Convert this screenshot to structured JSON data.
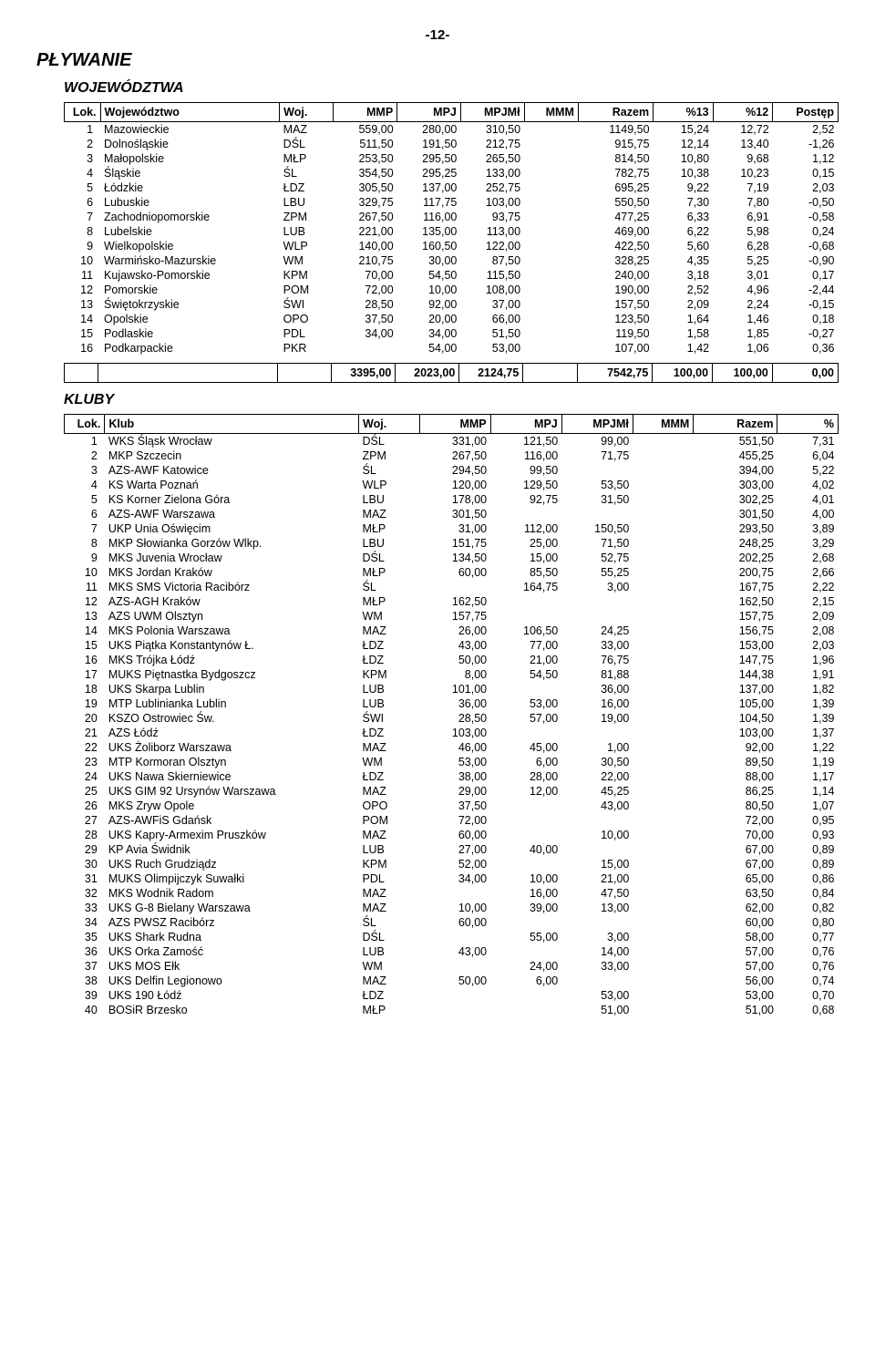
{
  "pageNumber": "-12-",
  "title": "PŁYWANIE",
  "wojTitle": "WOJEWÓDZTWA",
  "klubTitle": "KLUBY",
  "wojHeaders": [
    "Lok.",
    "Województwo",
    "Woj.",
    "MMP",
    "MPJ",
    "MPJMł",
    "MMM",
    "Razem",
    "%13",
    "%12",
    "Postęp"
  ],
  "wojRows": [
    [
      "1",
      "Mazowieckie",
      "MAZ",
      "559,00",
      "280,00",
      "310,50",
      "",
      "1149,50",
      "15,24",
      "12,72",
      "2,52"
    ],
    [
      "2",
      "Dolnośląskie",
      "DŚL",
      "511,50",
      "191,50",
      "212,75",
      "",
      "915,75",
      "12,14",
      "13,40",
      "-1,26"
    ],
    [
      "3",
      "Małopolskie",
      "MŁP",
      "253,50",
      "295,50",
      "265,50",
      "",
      "814,50",
      "10,80",
      "9,68",
      "1,12"
    ],
    [
      "4",
      "Śląskie",
      "ŚL",
      "354,50",
      "295,25",
      "133,00",
      "",
      "782,75",
      "10,38",
      "10,23",
      "0,15"
    ],
    [
      "5",
      "Łódzkie",
      "ŁDZ",
      "305,50",
      "137,00",
      "252,75",
      "",
      "695,25",
      "9,22",
      "7,19",
      "2,03"
    ],
    [
      "6",
      "Lubuskie",
      "LBU",
      "329,75",
      "117,75",
      "103,00",
      "",
      "550,50",
      "7,30",
      "7,80",
      "-0,50"
    ],
    [
      "7",
      "Zachodniopomorskie",
      "ZPM",
      "267,50",
      "116,00",
      "93,75",
      "",
      "477,25",
      "6,33",
      "6,91",
      "-0,58"
    ],
    [
      "8",
      "Lubelskie",
      "LUB",
      "221,00",
      "135,00",
      "113,00",
      "",
      "469,00",
      "6,22",
      "5,98",
      "0,24"
    ],
    [
      "9",
      "Wielkopolskie",
      "WLP",
      "140,00",
      "160,50",
      "122,00",
      "",
      "422,50",
      "5,60",
      "6,28",
      "-0,68"
    ],
    [
      "10",
      "Warmińsko-Mazurskie",
      "WM",
      "210,75",
      "30,00",
      "87,50",
      "",
      "328,25",
      "4,35",
      "5,25",
      "-0,90"
    ],
    [
      "11",
      "Kujawsko-Pomorskie",
      "KPM",
      "70,00",
      "54,50",
      "115,50",
      "",
      "240,00",
      "3,18",
      "3,01",
      "0,17"
    ],
    [
      "12",
      "Pomorskie",
      "POM",
      "72,00",
      "10,00",
      "108,00",
      "",
      "190,00",
      "2,52",
      "4,96",
      "-2,44"
    ],
    [
      "13",
      "Świętokrzyskie",
      "ŚWI",
      "28,50",
      "92,00",
      "37,00",
      "",
      "157,50",
      "2,09",
      "2,24",
      "-0,15"
    ],
    [
      "14",
      "Opolskie",
      "OPO",
      "37,50",
      "20,00",
      "66,00",
      "",
      "123,50",
      "1,64",
      "1,46",
      "0,18"
    ],
    [
      "15",
      "Podlaskie",
      "PDL",
      "34,00",
      "34,00",
      "51,50",
      "",
      "119,50",
      "1,58",
      "1,85",
      "-0,27"
    ],
    [
      "16",
      "Podkarpackie",
      "PKR",
      "",
      "54,00",
      "53,00",
      "",
      "107,00",
      "1,42",
      "1,06",
      "0,36"
    ]
  ],
  "wojTotals": [
    "",
    "",
    "",
    "3395,00",
    "2023,00",
    "2124,75",
    "",
    "7542,75",
    "100,00",
    "100,00",
    "0,00"
  ],
  "klubHeaders": [
    "Lok.",
    "Klub",
    "Woj.",
    "MMP",
    "MPJ",
    "MPJMł",
    "MMM",
    "Razem",
    "%"
  ],
  "klubRows": [
    [
      "1",
      "WKS Śląsk Wrocław",
      "DŚL",
      "331,00",
      "121,50",
      "99,00",
      "",
      "551,50",
      "7,31"
    ],
    [
      "2",
      "MKP Szczecin",
      "ZPM",
      "267,50",
      "116,00",
      "71,75",
      "",
      "455,25",
      "6,04"
    ],
    [
      "3",
      "AZS-AWF Katowice",
      "ŚL",
      "294,50",
      "99,50",
      "",
      "",
      "394,00",
      "5,22"
    ],
    [
      "4",
      "KS Warta Poznań",
      "WLP",
      "120,00",
      "129,50",
      "53,50",
      "",
      "303,00",
      "4,02"
    ],
    [
      "5",
      "KS Korner Zielona Góra",
      "LBU",
      "178,00",
      "92,75",
      "31,50",
      "",
      "302,25",
      "4,01"
    ],
    [
      "6",
      "AZS-AWF Warszawa",
      "MAZ",
      "301,50",
      "",
      "",
      "",
      "301,50",
      "4,00"
    ],
    [
      "7",
      "UKP Unia Oświęcim",
      "MŁP",
      "31,00",
      "112,00",
      "150,50",
      "",
      "293,50",
      "3,89"
    ],
    [
      "8",
      "MKP Słowianka Gorzów Wlkp.",
      "LBU",
      "151,75",
      "25,00",
      "71,50",
      "",
      "248,25",
      "3,29"
    ],
    [
      "9",
      "MKS Juvenia Wrocław",
      "DŚL",
      "134,50",
      "15,00",
      "52,75",
      "",
      "202,25",
      "2,68"
    ],
    [
      "10",
      "MKS Jordan Kraków",
      "MŁP",
      "60,00",
      "85,50",
      "55,25",
      "",
      "200,75",
      "2,66"
    ],
    [
      "11",
      "MKS SMS Victoria Racibórz",
      "ŚL",
      "",
      "164,75",
      "3,00",
      "",
      "167,75",
      "2,22"
    ],
    [
      "12",
      "AZS-AGH Kraków",
      "MŁP",
      "162,50",
      "",
      "",
      "",
      "162,50",
      "2,15"
    ],
    [
      "13",
      "AZS UWM Olsztyn",
      "WM",
      "157,75",
      "",
      "",
      "",
      "157,75",
      "2,09"
    ],
    [
      "14",
      "MKS Polonia Warszawa",
      "MAZ",
      "26,00",
      "106,50",
      "24,25",
      "",
      "156,75",
      "2,08"
    ],
    [
      "15",
      "UKS Piątka Konstantynów Ł.",
      "ŁDZ",
      "43,00",
      "77,00",
      "33,00",
      "",
      "153,00",
      "2,03"
    ],
    [
      "16",
      "MKS Trójka Łódź",
      "ŁDZ",
      "50,00",
      "21,00",
      "76,75",
      "",
      "147,75",
      "1,96"
    ],
    [
      "17",
      "MUKS Piętnastka Bydgoszcz",
      "KPM",
      "8,00",
      "54,50",
      "81,88",
      "",
      "144,38",
      "1,91"
    ],
    [
      "18",
      "UKS Skarpa Lublin",
      "LUB",
      "101,00",
      "",
      "36,00",
      "",
      "137,00",
      "1,82"
    ],
    [
      "19",
      "MTP Lublinianka Lublin",
      "LUB",
      "36,00",
      "53,00",
      "16,00",
      "",
      "105,00",
      "1,39"
    ],
    [
      "20",
      "KSZO Ostrowiec Św.",
      "ŚWI",
      "28,50",
      "57,00",
      "19,00",
      "",
      "104,50",
      "1,39"
    ],
    [
      "21",
      "AZS Łódź",
      "ŁDZ",
      "103,00",
      "",
      "",
      "",
      "103,00",
      "1,37"
    ],
    [
      "22",
      "UKS Żoliborz Warszawa",
      "MAZ",
      "46,00",
      "45,00",
      "1,00",
      "",
      "92,00",
      "1,22"
    ],
    [
      "23",
      "MTP Kormoran Olsztyn",
      "WM",
      "53,00",
      "6,00",
      "30,50",
      "",
      "89,50",
      "1,19"
    ],
    [
      "24",
      "UKS Nawa Skierniewice",
      "ŁDZ",
      "38,00",
      "28,00",
      "22,00",
      "",
      "88,00",
      "1,17"
    ],
    [
      "25",
      "UKS GIM 92 Ursynów Warszawa",
      "MAZ",
      "29,00",
      "12,00",
      "45,25",
      "",
      "86,25",
      "1,14"
    ],
    [
      "26",
      "MKS Zryw Opole",
      "OPO",
      "37,50",
      "",
      "43,00",
      "",
      "80,50",
      "1,07"
    ],
    [
      "27",
      "AZS-AWFiS Gdańsk",
      "POM",
      "72,00",
      "",
      "",
      "",
      "72,00",
      "0,95"
    ],
    [
      "28",
      "UKS Kapry-Armexim Pruszków",
      "MAZ",
      "60,00",
      "",
      "10,00",
      "",
      "70,00",
      "0,93"
    ],
    [
      "29",
      "KP Avia Świdnik",
      "LUB",
      "27,00",
      "40,00",
      "",
      "",
      "67,00",
      "0,89"
    ],
    [
      "30",
      "UKS Ruch Grudziądz",
      "KPM",
      "52,00",
      "",
      "15,00",
      "",
      "67,00",
      "0,89"
    ],
    [
      "31",
      "MUKS Olimpijczyk Suwałki",
      "PDL",
      "34,00",
      "10,00",
      "21,00",
      "",
      "65,00",
      "0,86"
    ],
    [
      "32",
      "MKS Wodnik Radom",
      "MAZ",
      "",
      "16,00",
      "47,50",
      "",
      "63,50",
      "0,84"
    ],
    [
      "33",
      "UKS G-8 Bielany Warszawa",
      "MAZ",
      "10,00",
      "39,00",
      "13,00",
      "",
      "62,00",
      "0,82"
    ],
    [
      "34",
      "AZS PWSZ Racibórz",
      "ŚL",
      "60,00",
      "",
      "",
      "",
      "60,00",
      "0,80"
    ],
    [
      "35",
      "UKS Shark Rudna",
      "DŚL",
      "",
      "55,00",
      "3,00",
      "",
      "58,00",
      "0,77"
    ],
    [
      "36",
      "UKS Orka Zamość",
      "LUB",
      "43,00",
      "",
      "14,00",
      "",
      "57,00",
      "0,76"
    ],
    [
      "37",
      "UKS MOS Ełk",
      "WM",
      "",
      "24,00",
      "33,00",
      "",
      "57,00",
      "0,76"
    ],
    [
      "38",
      "UKS Delfin Legionowo",
      "MAZ",
      "50,00",
      "6,00",
      "",
      "",
      "56,00",
      "0,74"
    ],
    [
      "39",
      "UKS 190 Łódź",
      "ŁDZ",
      "",
      "",
      "53,00",
      "",
      "53,00",
      "0,70"
    ],
    [
      "40",
      "BOSiR Brzesko",
      "MŁP",
      "",
      "",
      "51,00",
      "",
      "51,00",
      "0,68"
    ]
  ],
  "colWidths": {
    "woj": [
      "26px",
      "180px",
      "48px",
      "58px",
      "58px",
      "58px",
      "48px",
      "70px",
      "54px",
      "54px",
      "60px"
    ],
    "klub": [
      "26px",
      "230px",
      "48px",
      "58px",
      "58px",
      "58px",
      "48px",
      "70px",
      "48px"
    ]
  },
  "numericColsWoj": [
    3,
    4,
    5,
    6,
    7,
    8,
    9,
    10
  ],
  "numericColsKlub": [
    3,
    4,
    5,
    6,
    7,
    8
  ]
}
